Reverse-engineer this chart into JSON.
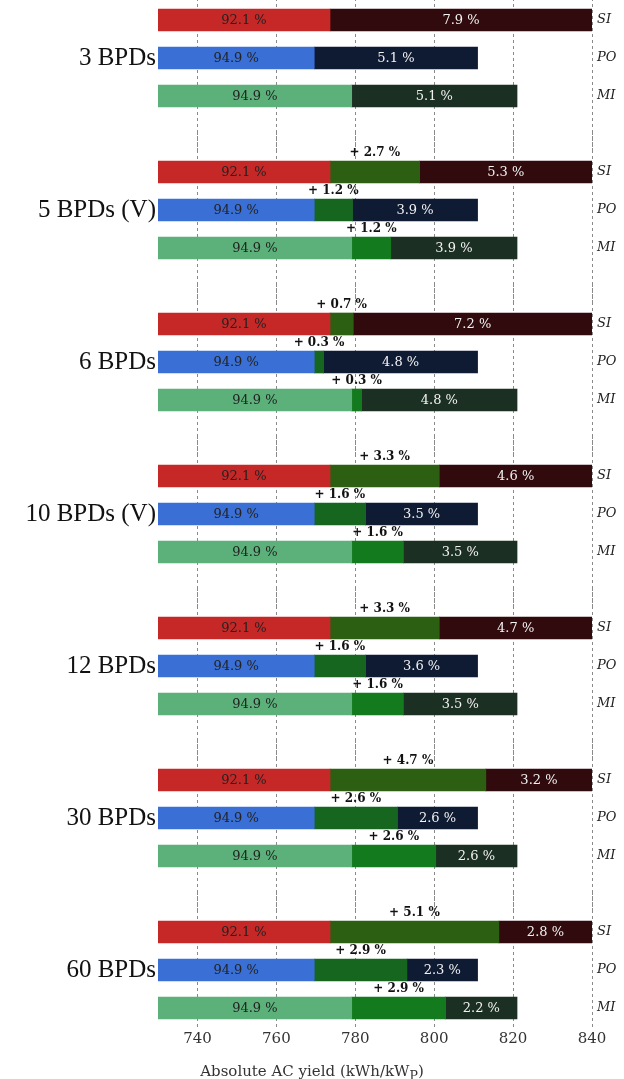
{
  "chart_data": [
    {
      "type": "bar",
      "orientation": "horizontal",
      "ylabel": "3 BPDs",
      "categories": [
        "SI",
        "PO",
        "MI"
      ],
      "xlim": [
        730,
        840
      ],
      "xticks": [
        740,
        760,
        780,
        800,
        820,
        840
      ],
      "grid": "x",
      "tick_labels": "y",
      "series": [
        {
          "colors": [
            "#c62828",
            "#3a6fd6",
            "#5cb07a"
          ],
          "base": [
            730,
            730,
            730
          ],
          "values": [
            43.6,
            39.6,
            49.1
          ]
        },
        {
          "colors": [
            "#300a0c",
            "#0f1a33",
            "#1b2f22"
          ],
          "base": [
            773.6,
            769.6,
            779.1
          ],
          "values": [
            66.4,
            41.4,
            41.9
          ]
        }
      ],
      "annotations": [
        "92.1 %",
        "94.9 %",
        "94.9 %",
        "7.9 %",
        "5.1 %",
        "5.1 %"
      ]
    },
    {
      "type": "bar",
      "orientation": "horizontal",
      "ylabel": "5 BPDs (V)",
      "categories": [
        "SI",
        "PO",
        "MI"
      ],
      "xlim": [
        730,
        840
      ],
      "xticks": [
        740,
        760,
        780,
        800,
        820,
        840
      ],
      "grid": "x",
      "tick_labels": "y",
      "series": [
        {
          "colors": [
            "#c62828",
            "#3a6fd6",
            "#5cb07a"
          ],
          "base": [
            730,
            730,
            730
          ],
          "values": [
            43.6,
            39.6,
            49.1
          ]
        },
        {
          "colors": [
            "#2d5f12",
            "#17661f",
            "#137a1e"
          ],
          "base": [
            773.6,
            769.6,
            779.1
          ],
          "values": [
            22.7,
            9.7,
            9.9
          ]
        },
        {
          "colors": [
            "#300a0c",
            "#0f1a33",
            "#1b2f22"
          ],
          "base": [
            796.3,
            779.3,
            789.0
          ],
          "values": [
            43.7,
            31.7,
            32.0
          ]
        }
      ],
      "annotations": [
        "92.1 %",
        "94.9 %",
        "94.9 %",
        "+ 2.7 %",
        "+ 1.2 %",
        "+ 1.2 %",
        "5.3 %",
        "3.9 %",
        "3.9 %"
      ]
    },
    {
      "type": "bar",
      "orientation": "horizontal",
      "ylabel": "6 BPDs",
      "categories": [
        "SI",
        "PO",
        "MI"
      ],
      "xlim": [
        730,
        840
      ],
      "xticks": [
        740,
        760,
        780,
        800,
        820,
        840
      ],
      "grid": "x",
      "tick_labels": "y",
      "series": [
        {
          "colors": [
            "#c62828",
            "#3a6fd6",
            "#5cb07a"
          ],
          "base": [
            730,
            730,
            730
          ],
          "values": [
            43.6,
            39.6,
            49.1
          ]
        },
        {
          "colors": [
            "#2d5f12",
            "#17661f",
            "#137a1e"
          ],
          "base": [
            773.6,
            769.6,
            779.1
          ],
          "values": [
            5.9,
            2.4,
            2.5
          ]
        },
        {
          "colors": [
            "#300a0c",
            "#0f1a33",
            "#1b2f22"
          ],
          "base": [
            779.5,
            772.0,
            781.6
          ],
          "values": [
            60.5,
            39.0,
            39.4
          ]
        }
      ],
      "annotations": [
        "92.1 %",
        "94.9 %",
        "94.9 %",
        "+ 0.7 %",
        "+ 0.3 %",
        "+ 0.3 %",
        "7.2 %",
        "4.8 %",
        "4.8 %"
      ]
    },
    {
      "type": "bar",
      "orientation": "horizontal",
      "ylabel": "10 BPDs (V)",
      "categories": [
        "SI",
        "PO",
        "MI"
      ],
      "xlim": [
        730,
        840
      ],
      "xticks": [
        740,
        760,
        780,
        800,
        820,
        840
      ],
      "grid": "x",
      "tick_labels": "y",
      "series": [
        {
          "colors": [
            "#c62828",
            "#3a6fd6",
            "#5cb07a"
          ],
          "base": [
            730,
            730,
            730
          ],
          "values": [
            43.6,
            39.6,
            49.1
          ]
        },
        {
          "colors": [
            "#2d5f12",
            "#17661f",
            "#137a1e"
          ],
          "base": [
            773.6,
            769.6,
            779.1
          ],
          "values": [
            27.7,
            13.0,
            13.1
          ]
        },
        {
          "colors": [
            "#300a0c",
            "#0f1a33",
            "#1b2f22"
          ],
          "base": [
            801.3,
            782.6,
            792.2
          ],
          "values": [
            38.7,
            28.4,
            28.8
          ]
        }
      ],
      "annotations": [
        "92.1 %",
        "94.9 %",
        "94.9 %",
        "+ 3.3 %",
        "+ 1.6 %",
        "+ 1.6 %",
        "4.6 %",
        "3.5 %",
        "3.5 %"
      ]
    },
    {
      "type": "bar",
      "orientation": "horizontal",
      "ylabel": "12 BPDs",
      "categories": [
        "SI",
        "PO",
        "MI"
      ],
      "xlim": [
        730,
        840
      ],
      "xticks": [
        740,
        760,
        780,
        800,
        820,
        840
      ],
      "grid": "x",
      "tick_labels": "y",
      "series": [
        {
          "colors": [
            "#c62828",
            "#3a6fd6",
            "#5cb07a"
          ],
          "base": [
            730,
            730,
            730
          ],
          "values": [
            43.6,
            39.6,
            49.1
          ]
        },
        {
          "colors": [
            "#2d5f12",
            "#17661f",
            "#137a1e"
          ],
          "base": [
            773.6,
            769.6,
            779.1
          ],
          "values": [
            27.7,
            13.0,
            13.1
          ]
        },
        {
          "colors": [
            "#300a0c",
            "#0f1a33",
            "#1b2f22"
          ],
          "base": [
            801.3,
            782.6,
            792.2
          ],
          "values": [
            38.7,
            28.4,
            28.8
          ]
        }
      ],
      "annotations": [
        "92.1 %",
        "94.9 %",
        "94.9 %",
        "+ 3.3 %",
        "+ 1.6 %",
        "+ 1.6 %",
        "4.7 %",
        "3.6 %",
        "3.5 %"
      ]
    },
    {
      "type": "bar",
      "orientation": "horizontal",
      "ylabel": "30 BPDs",
      "categories": [
        "SI",
        "PO",
        "MI"
      ],
      "xlim": [
        730,
        840
      ],
      "xticks": [
        740,
        760,
        780,
        800,
        820,
        840
      ],
      "grid": "x",
      "tick_labels": "y",
      "series": [
        {
          "colors": [
            "#c62828",
            "#3a6fd6",
            "#5cb07a"
          ],
          "base": [
            730,
            730,
            730
          ],
          "values": [
            43.6,
            39.6,
            49.1
          ]
        },
        {
          "colors": [
            "#2d5f12",
            "#17661f",
            "#137a1e"
          ],
          "base": [
            773.6,
            769.6,
            779.1
          ],
          "values": [
            39.5,
            21.1,
            21.3
          ]
        },
        {
          "colors": [
            "#300a0c",
            "#0f1a33",
            "#1b2f22"
          ],
          "base": [
            813.1,
            790.7,
            800.4
          ],
          "values": [
            26.9,
            20.3,
            20.6
          ]
        }
      ],
      "annotations": [
        "92.1 %",
        "94.9 %",
        "94.9 %",
        "+ 4.7 %",
        "+ 2.6 %",
        "+ 2.6 %",
        "3.2 %",
        "2.6 %",
        "2.6 %"
      ]
    },
    {
      "type": "bar",
      "orientation": "horizontal",
      "ylabel": "60 BPDs",
      "xlabel": "Absolute AC yield (kWh/kW$_{P}$)",
      "categories": [
        "SI",
        "PO",
        "MI"
      ],
      "xlim": [
        730,
        840
      ],
      "xticks": [
        740,
        760,
        780,
        800,
        820,
        840
      ],
      "grid": "x",
      "series": [
        {
          "colors": [
            "#c62828",
            "#3a6fd6",
            "#5cb07a"
          ],
          "base": [
            730,
            730,
            730
          ],
          "values": [
            43.6,
            39.6,
            49.1
          ]
        },
        {
          "colors": [
            "#2d5f12",
            "#17661f",
            "#137a1e"
          ],
          "base": [
            773.6,
            769.6,
            779.1
          ],
          "values": [
            42.8,
            23.5,
            23.8
          ]
        },
        {
          "colors": [
            "#300a0c",
            "#0f1a33",
            "#1b2f22"
          ],
          "base": [
            816.4,
            793.1,
            802.9
          ],
          "values": [
            23.6,
            17.9,
            18.1
          ]
        }
      ],
      "annotations": [
        "92.1 %",
        "94.9 %",
        "94.9 %",
        "+ 5.1 %",
        "+ 2.9 %",
        "+ 2.9 %",
        "2.8 %",
        "2.3 %",
        "2.2 %"
      ]
    }
  ]
}
